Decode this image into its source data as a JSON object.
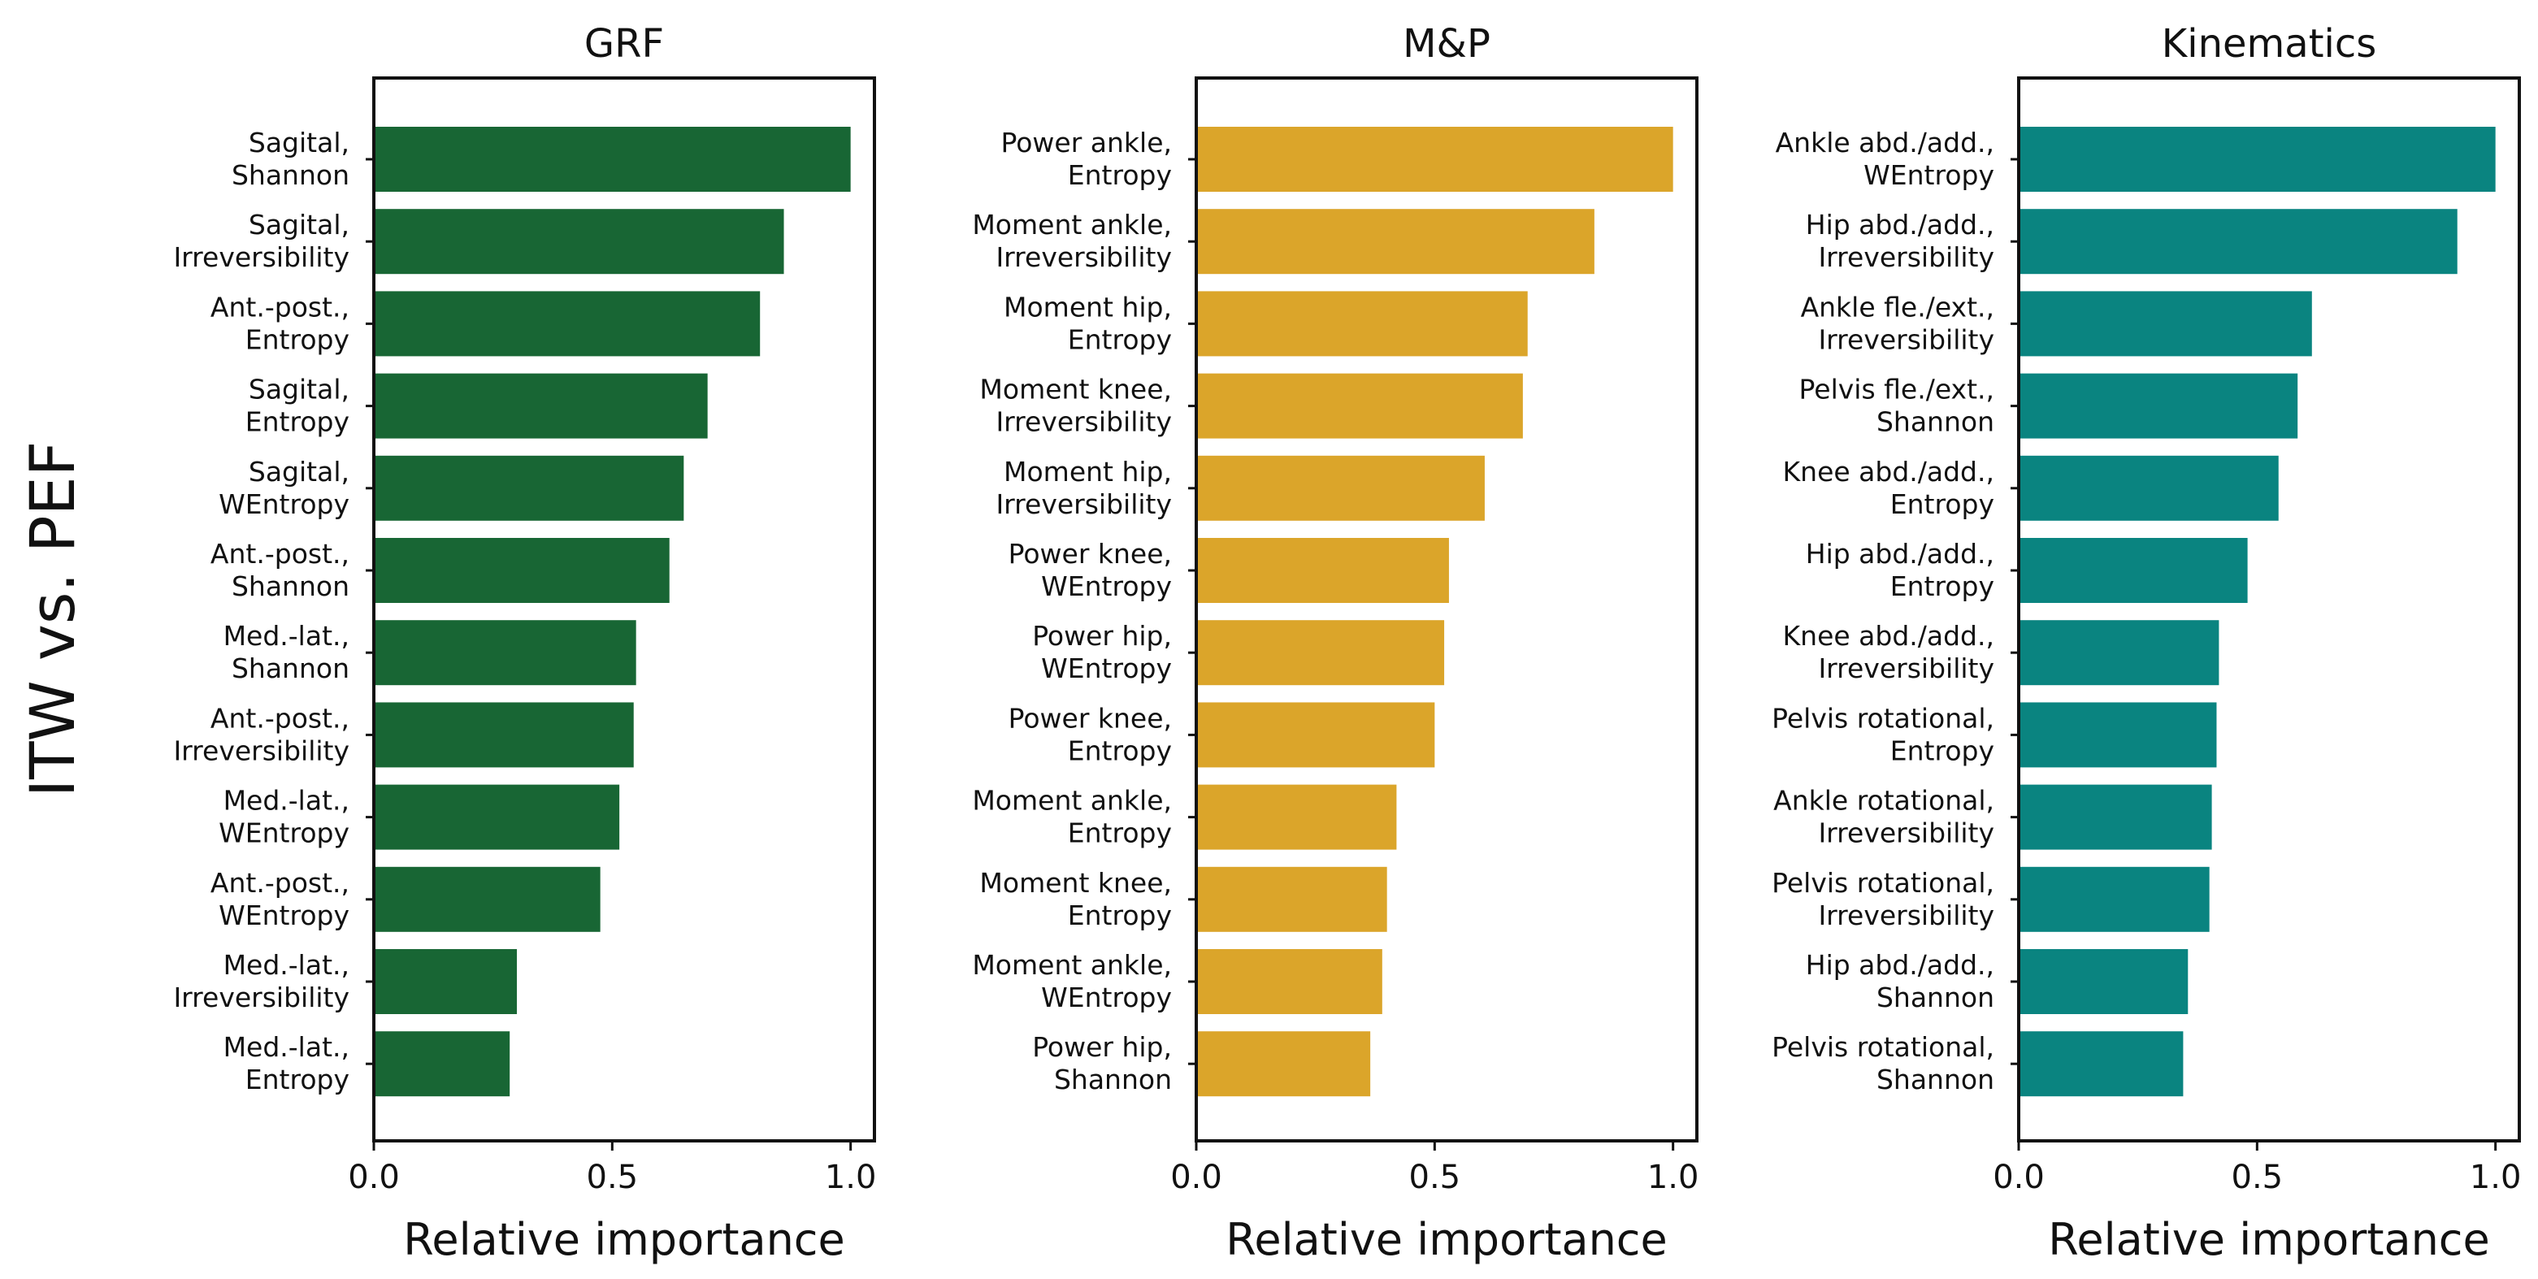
{
  "row_label": "ITW vs. PEF",
  "chart_data": [
    {
      "type": "bar",
      "orientation": "horizontal",
      "title": "GRF",
      "xlabel": "Relative importance",
      "ylabel": "",
      "xlim": [
        0,
        1.05
      ],
      "xticks": [
        "0.0",
        "0.5",
        "1.0"
      ],
      "color": "#186634",
      "categories": [
        [
          "Sagital,",
          "Shannon"
        ],
        [
          "Sagital,",
          "Irreversibility"
        ],
        [
          "Ant.-post.,",
          "Entropy"
        ],
        [
          "Sagital,",
          "Entropy"
        ],
        [
          "Sagital,",
          "WEntropy"
        ],
        [
          "Ant.-post.,",
          "Shannon"
        ],
        [
          "Med.-lat.,",
          "Shannon"
        ],
        [
          "Ant.-post.,",
          "Irreversibility"
        ],
        [
          "Med.-lat.,",
          "WEntropy"
        ],
        [
          "Ant.-post.,",
          "WEntropy"
        ],
        [
          "Med.-lat.,",
          "Irreversibility"
        ],
        [
          "Med.-lat.,",
          "Entropy"
        ]
      ],
      "values": [
        1.0,
        0.86,
        0.81,
        0.7,
        0.65,
        0.62,
        0.55,
        0.545,
        0.515,
        0.475,
        0.3,
        0.285
      ],
      "grid": false
    },
    {
      "type": "bar",
      "orientation": "horizontal",
      "title": "M&P",
      "xlabel": "Relative importance",
      "ylabel": "",
      "xlim": [
        0,
        1.05
      ],
      "xticks": [
        "0.0",
        "0.5",
        "1.0"
      ],
      "color": "#DBA52A",
      "categories": [
        [
          "Power ankle,",
          "Entropy"
        ],
        [
          "Moment ankle,",
          "Irreversibility"
        ],
        [
          "Moment hip,",
          "Entropy"
        ],
        [
          "Moment knee,",
          "Irreversibility"
        ],
        [
          "Moment hip,",
          "Irreversibility"
        ],
        [
          "Power knee,",
          "WEntropy"
        ],
        [
          "Power hip,",
          "WEntropy"
        ],
        [
          "Power knee,",
          "Entropy"
        ],
        [
          "Moment ankle,",
          "Entropy"
        ],
        [
          "Moment knee,",
          "Entropy"
        ],
        [
          "Moment ankle,",
          "WEntropy"
        ],
        [
          "Power hip,",
          "Shannon"
        ]
      ],
      "values": [
        1.0,
        0.835,
        0.695,
        0.685,
        0.605,
        0.53,
        0.52,
        0.5,
        0.42,
        0.4,
        0.39,
        0.365
      ],
      "grid": false
    },
    {
      "type": "bar",
      "orientation": "horizontal",
      "title": "Kinematics",
      "xlabel": "Relative importance",
      "ylabel": "",
      "xlim": [
        0,
        1.05
      ],
      "xticks": [
        "0.0",
        "0.5",
        "1.0"
      ],
      "color": "#0A8480",
      "categories": [
        [
          "Ankle abd./add.,",
          "WEntropy"
        ],
        [
          "Hip abd./add.,",
          "Irreversibility"
        ],
        [
          "Ankle fle./ext.,",
          "Irreversibility"
        ],
        [
          "Pelvis fle./ext.,",
          "Shannon"
        ],
        [
          "Knee abd./add.,",
          "Entropy"
        ],
        [
          "Hip abd./add.,",
          "Entropy"
        ],
        [
          "Knee abd./add.,",
          "Irreversibility"
        ],
        [
          "Pelvis rotational,",
          "Entropy"
        ],
        [
          "Ankle rotational,",
          "Irreversibility"
        ],
        [
          "Pelvis rotational,",
          "Irreversibility"
        ],
        [
          "Hip abd./add.,",
          "Shannon"
        ],
        [
          "Pelvis rotational,",
          "Shannon"
        ]
      ],
      "values": [
        1.0,
        0.92,
        0.615,
        0.585,
        0.545,
        0.48,
        0.42,
        0.415,
        0.405,
        0.4,
        0.355,
        0.345
      ],
      "grid": false
    }
  ]
}
